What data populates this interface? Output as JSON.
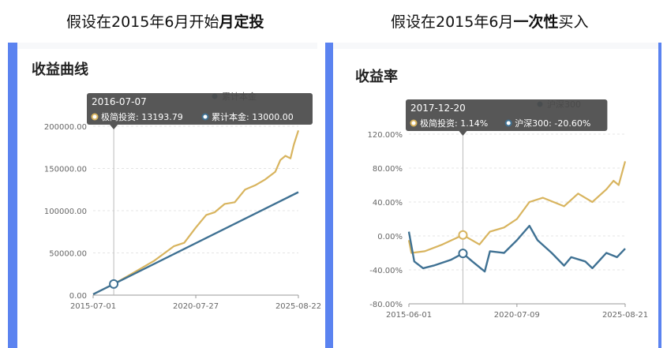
{
  "captions": {
    "left": {
      "prefix": "假设在2015年6月开始",
      "bold": "月定投"
    },
    "right": {
      "prefix": "假设在2015年6月",
      "bold": "一次性",
      "suffix": "买入"
    }
  },
  "colors": {
    "accent_bar": "#5b83f0",
    "gold": "#d8b45e",
    "blue": "#3f7193",
    "panel_bg": "#f7f8fa",
    "tooltip_bg": "#4a4a4a",
    "grid": "#e4e4e4"
  },
  "chart_data": [
    {
      "type": "line",
      "title": "收益曲线",
      "x_ticks": [
        "2015-07-01",
        "2020-07-27",
        "2025-08-22"
      ],
      "x_range": [
        "2015-07-01",
        "2025-08-22"
      ],
      "ylim": [
        0,
        200000
      ],
      "y_ticks": [
        0,
        50000,
        100000,
        150000,
        200000
      ],
      "y_tick_labels": [
        "0.00",
        "50000.00",
        "100000.00",
        "150000.00",
        "200000.00"
      ],
      "grid": true,
      "legend_position": "top",
      "legend": [
        "累计本金"
      ],
      "series": [
        {
          "color": "#d8b45e",
          "points": [
            [
              "2015-07-01",
              1000
            ],
            [
              "2016-07-07",
              13194
            ],
            [
              "2017-07-01",
              26500
            ],
            [
              "2018-07-01",
              40500
            ],
            [
              "2019-07-01",
              58000
            ],
            [
              "2020-01-01",
              62000
            ],
            [
              "2020-07-27",
              80000
            ],
            [
              "2021-02-01",
              95000
            ],
            [
              "2021-07-01",
              98000
            ],
            [
              "2022-01-01",
              108000
            ],
            [
              "2022-07-01",
              110000
            ],
            [
              "2023-01-01",
              125000
            ],
            [
              "2023-07-01",
              130000
            ],
            [
              "2024-01-01",
              137000
            ],
            [
              "2024-07-01",
              146000
            ],
            [
              "2024-10-01",
              160000
            ],
            [
              "2025-01-01",
              165000
            ],
            [
              "2025-04-01",
              162000
            ],
            [
              "2025-06-01",
              178000
            ],
            [
              "2025-08-22",
              195000
            ]
          ]
        },
        {
          "name": "累计本金",
          "color": "#3f7193",
          "points": [
            [
              "2015-07-01",
              1000
            ],
            [
              "2025-08-22",
              122000
            ]
          ]
        }
      ],
      "tooltip": {
        "date": "2016-07-07",
        "items": [
          {
            "label": "极简投资",
            "value": "13193.79",
            "color": "#d8b45e"
          },
          {
            "label": "累计本金",
            "value": "13000.00",
            "color": "#3f7193"
          }
        ],
        "marker_y": 13194
      }
    },
    {
      "type": "line",
      "title": "收益率",
      "x_ticks": [
        "2015-06-01",
        "2020-07-09",
        "2025-08-21"
      ],
      "x_range": [
        "2015-06-01",
        "2025-08-21"
      ],
      "ylim": [
        -80,
        120
      ],
      "y_ticks": [
        -80,
        -40,
        0,
        40,
        80,
        120
      ],
      "y_tick_labels": [
        "-80.00%",
        "-40.00%",
        "0.00%",
        "40.00%",
        "80.00%",
        "120.00%"
      ],
      "grid": true,
      "legend_position": "top",
      "legend": [
        "沪深300"
      ],
      "series": [
        {
          "color": "#d8b45e",
          "points": [
            [
              "2015-06-01",
              -5
            ],
            [
              "2015-07-15",
              -20
            ],
            [
              "2016-03-01",
              -18
            ],
            [
              "2017-01-01",
              -10
            ],
            [
              "2017-12-20",
              1.14
            ],
            [
              "2018-10-01",
              -10
            ],
            [
              "2019-04-01",
              5
            ],
            [
              "2019-12-01",
              10
            ],
            [
              "2020-07-09",
              20
            ],
            [
              "2021-02-10",
              40
            ],
            [
              "2021-10-01",
              45
            ],
            [
              "2022-10-01",
              35
            ],
            [
              "2023-06-01",
              50
            ],
            [
              "2024-02-01",
              40
            ],
            [
              "2024-10-01",
              55
            ],
            [
              "2025-02-01",
              65
            ],
            [
              "2025-05-01",
              60
            ],
            [
              "2025-08-21",
              88
            ]
          ]
        },
        {
          "name": "沪深300",
          "color": "#3f7193",
          "points": [
            [
              "2015-06-01",
              5
            ],
            [
              "2015-09-01",
              -30
            ],
            [
              "2016-02-01",
              -38
            ],
            [
              "2016-08-01",
              -35
            ],
            [
              "2017-06-01",
              -28
            ],
            [
              "2017-12-20",
              -20.6
            ],
            [
              "2018-06-01",
              -30
            ],
            [
              "2019-01-01",
              -42
            ],
            [
              "2019-04-01",
              -18
            ],
            [
              "2019-12-01",
              -20
            ],
            [
              "2020-07-09",
              -5
            ],
            [
              "2021-02-10",
              12
            ],
            [
              "2021-07-01",
              -5
            ],
            [
              "2022-03-01",
              -20
            ],
            [
              "2022-10-01",
              -35
            ],
            [
              "2023-02-01",
              -25
            ],
            [
              "2023-10-01",
              -30
            ],
            [
              "2024-02-01",
              -38
            ],
            [
              "2024-10-01",
              -20
            ],
            [
              "2025-04-01",
              -25
            ],
            [
              "2025-08-21",
              -15
            ]
          ]
        }
      ],
      "tooltip": {
        "date": "2017-12-20",
        "items": [
          {
            "label": "极简投资",
            "value": "1.14%",
            "color": "#d8b45e"
          },
          {
            "label": "沪深300",
            "value": "-20.60%",
            "color": "#3f7193"
          }
        ],
        "marker_y": 1.14,
        "marker_y2": -20.6
      }
    }
  ]
}
